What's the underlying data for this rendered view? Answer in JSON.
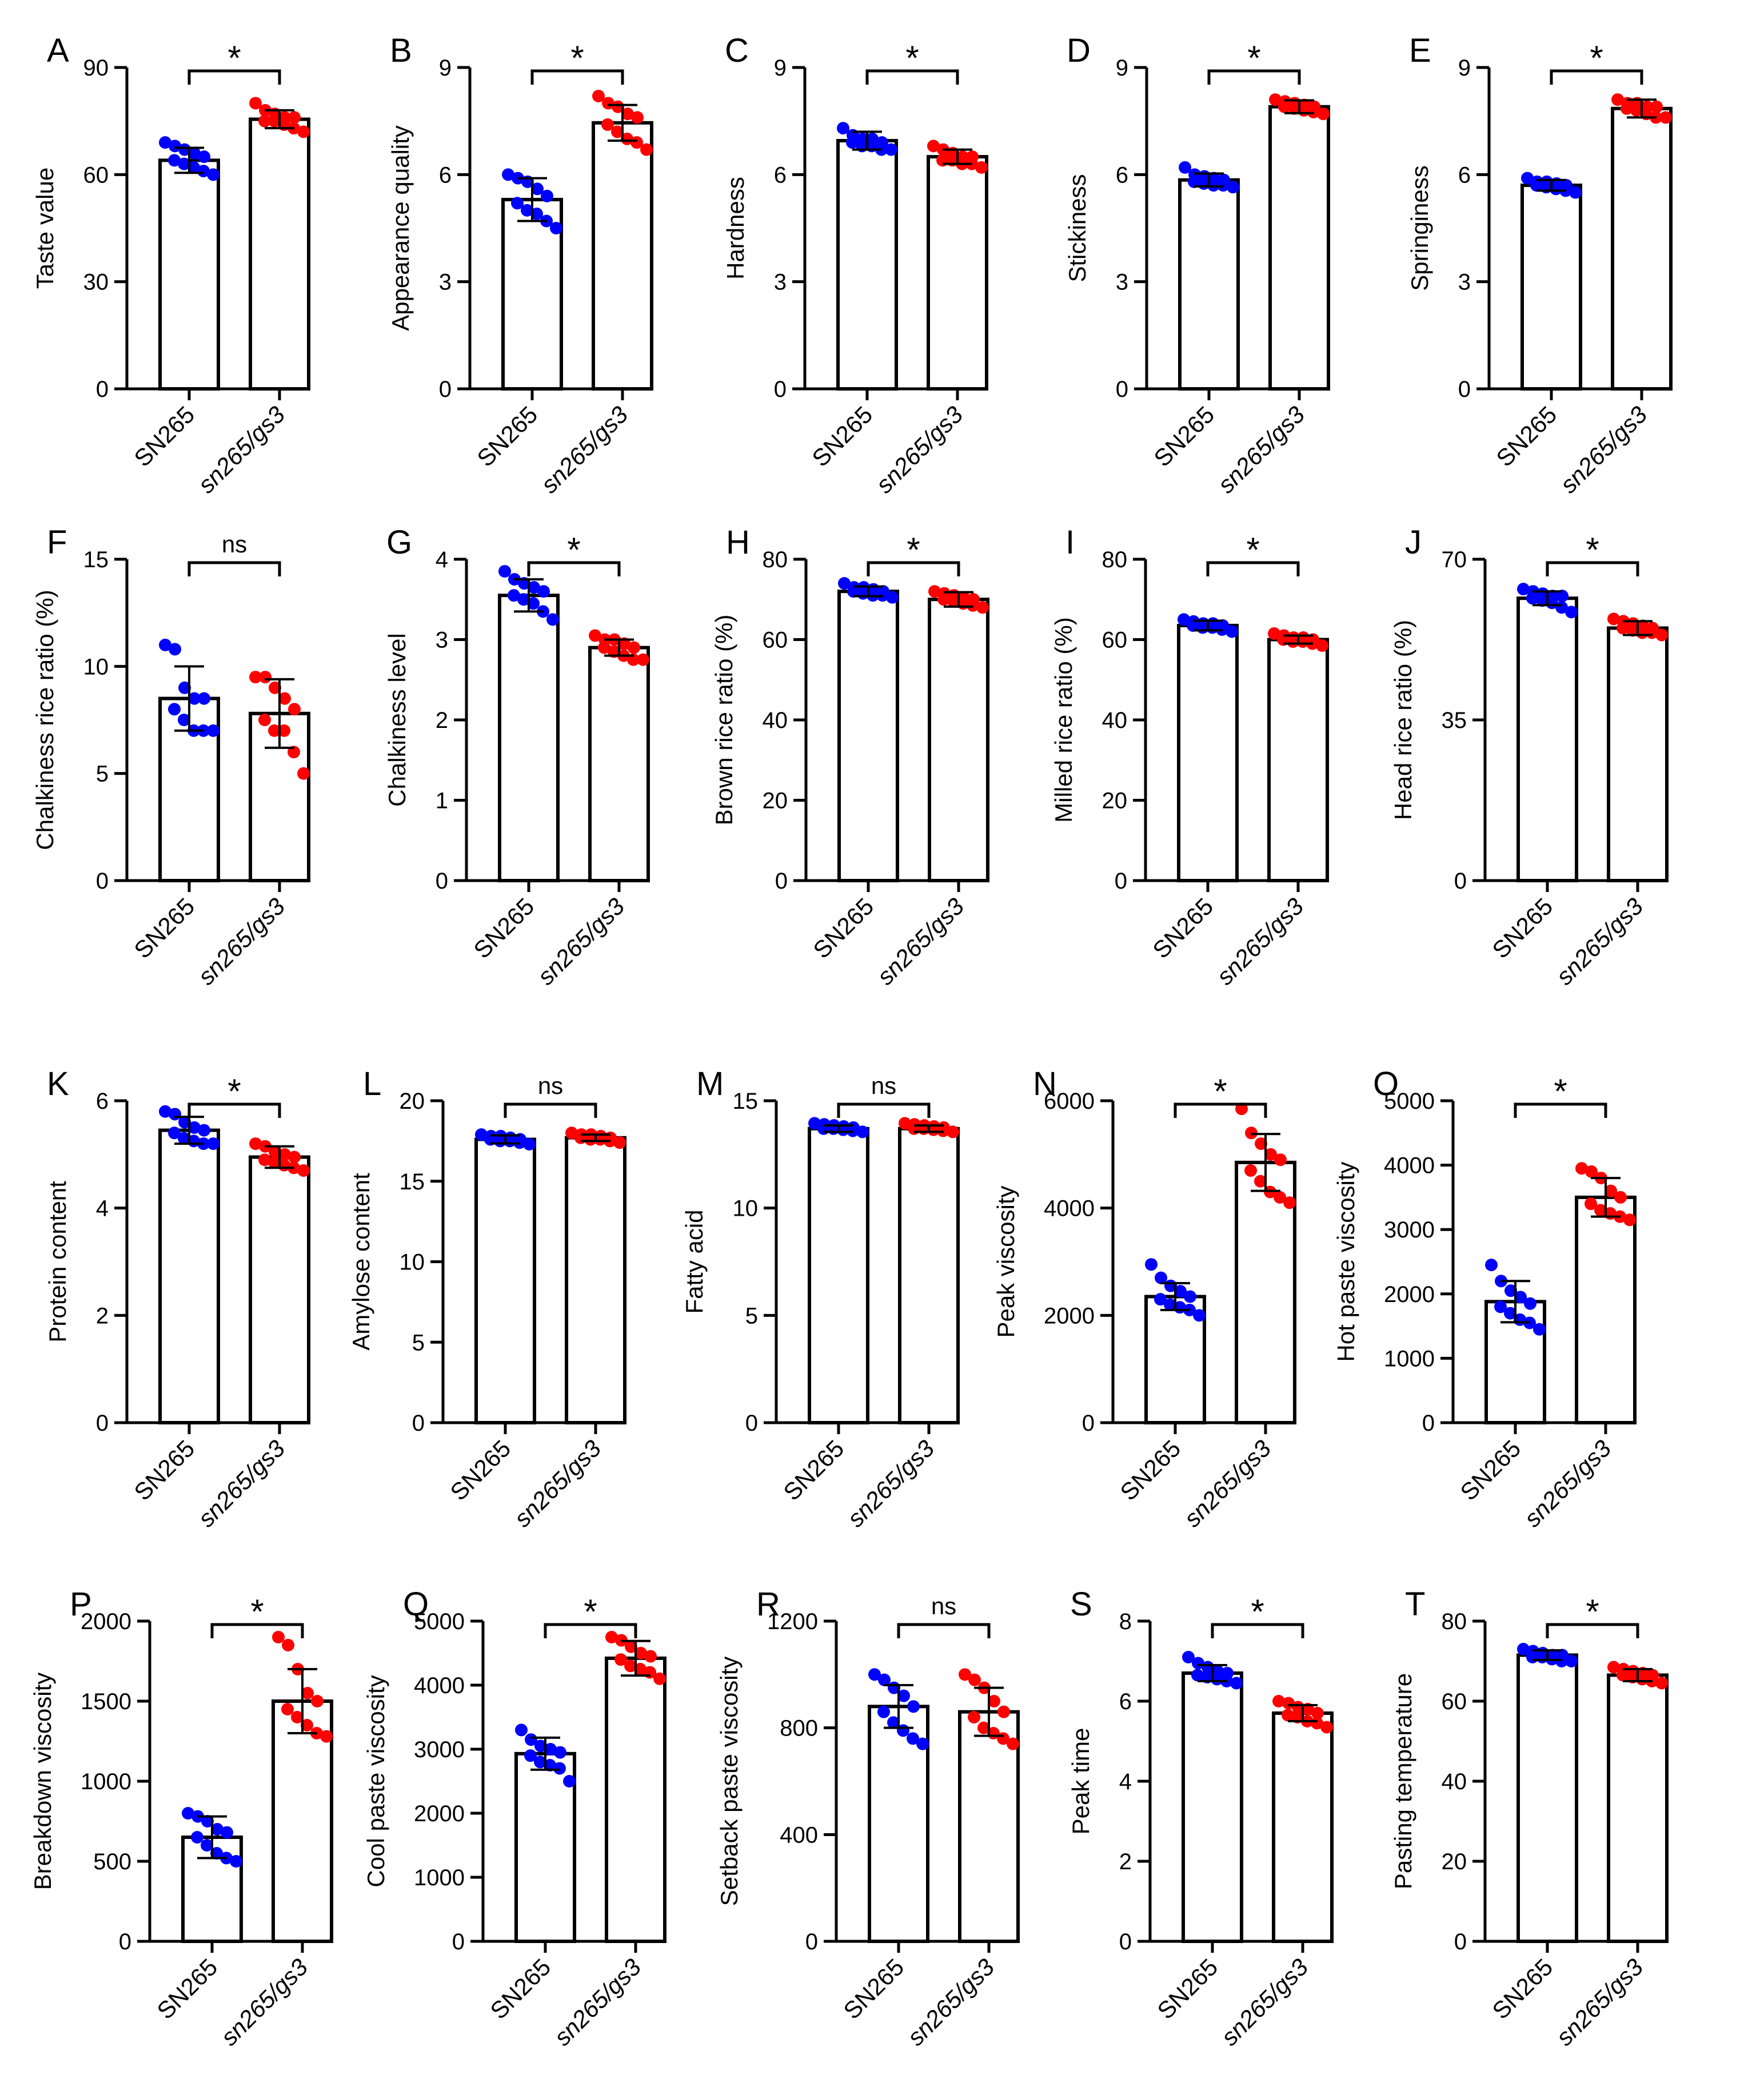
{
  "colors": {
    "wild_type": "#0000ff",
    "mutant": "#ff0000",
    "ink": "#000000"
  },
  "chart_data": [
    {
      "panel": "A",
      "type": "bar",
      "ylabel": "Taste value",
      "ylim": [
        0,
        90
      ],
      "yticks": [
        "0",
        "30",
        "60",
        "90"
      ],
      "categories": [
        "SN265",
        "sn265/gs3"
      ],
      "values": [
        64,
        75.5
      ],
      "sd": [
        3.5,
        2.5
      ],
      "significance": "*",
      "points": [
        [
          69,
          68,
          67,
          66,
          65,
          64,
          63,
          62,
          61,
          60
        ],
        [
          80,
          78,
          77,
          76,
          76,
          75,
          75,
          74,
          73,
          72
        ]
      ]
    },
    {
      "panel": "B",
      "type": "bar",
      "ylabel": "Appearance quality",
      "ylim": [
        0,
        9
      ],
      "yticks": [
        "0",
        "3",
        "6",
        "9"
      ],
      "categories": [
        "SN265",
        "sn265/gs3"
      ],
      "values": [
        5.3,
        7.45
      ],
      "sd": [
        0.6,
        0.5
      ],
      "significance": "*",
      "points": [
        [
          6.0,
          5.9,
          5.8,
          5.6,
          5.4,
          5.2,
          5.0,
          4.9,
          4.7,
          4.5
        ],
        [
          8.2,
          8.0,
          7.9,
          7.7,
          7.6,
          7.4,
          7.2,
          7.0,
          6.9,
          6.7
        ]
      ]
    },
    {
      "panel": "C",
      "type": "bar",
      "ylabel": "Hardness",
      "ylim": [
        0,
        9
      ],
      "yticks": [
        "0",
        "3",
        "6",
        "9"
      ],
      "categories": [
        "SN265",
        "sn265/gs3"
      ],
      "values": [
        6.95,
        6.5
      ],
      "sd": [
        0.25,
        0.2
      ],
      "significance": "*",
      "points": [
        [
          7.3,
          7.1,
          7.0,
          7.0,
          6.9,
          6.9,
          6.8,
          6.8,
          6.7,
          6.7
        ],
        [
          6.8,
          6.7,
          6.6,
          6.5,
          6.5,
          6.4,
          6.4,
          6.3,
          6.3,
          6.2
        ]
      ]
    },
    {
      "panel": "D",
      "type": "bar",
      "ylabel": "Stickiness",
      "ylim": [
        0,
        9
      ],
      "yticks": [
        "0",
        "3",
        "6",
        "9"
      ],
      "categories": [
        "SN265",
        "sn265/gs3"
      ],
      "values": [
        5.85,
        7.9
      ],
      "sd": [
        0.18,
        0.18
      ],
      "significance": "*",
      "points": [
        [
          6.2,
          6.0,
          5.95,
          5.9,
          5.85,
          5.8,
          5.75,
          5.7,
          5.7,
          5.65
        ],
        [
          8.1,
          8.05,
          8.0,
          7.95,
          7.9,
          7.9,
          7.85,
          7.8,
          7.75,
          7.7
        ]
      ]
    },
    {
      "panel": "E",
      "type": "bar",
      "ylabel": "Springiness",
      "ylim": [
        0,
        9
      ],
      "yticks": [
        "0",
        "3",
        "6",
        "9"
      ],
      "categories": [
        "SN265",
        "sn265/gs3"
      ],
      "values": [
        5.7,
        7.85
      ],
      "sd": [
        0.15,
        0.25
      ],
      "significance": "*",
      "points": [
        [
          5.9,
          5.8,
          5.8,
          5.75,
          5.7,
          5.7,
          5.65,
          5.6,
          5.55,
          5.5
        ],
        [
          8.1,
          8.0,
          8.0,
          7.9,
          7.9,
          7.85,
          7.8,
          7.7,
          7.6,
          7.6
        ]
      ]
    },
    {
      "panel": "F",
      "type": "bar",
      "ylabel": "Chalkiness rice ratio (%)",
      "ylim": [
        0,
        15
      ],
      "yticks": [
        "0",
        "5",
        "10",
        "15"
      ],
      "categories": [
        "SN265",
        "sn265/gs3"
      ],
      "values": [
        8.5,
        7.8
      ],
      "sd": [
        1.5,
        1.6
      ],
      "significance": "ns",
      "points": [
        [
          11.0,
          10.8,
          9.0,
          8.5,
          8.5,
          8.0,
          7.5,
          7.0,
          7.0,
          7.0
        ],
        [
          9.5,
          9.5,
          9.0,
          8.5,
          8.0,
          7.5,
          7.0,
          7.0,
          6.0,
          5.0
        ]
      ]
    },
    {
      "panel": "G",
      "type": "bar",
      "ylabel": "Chalkiness level",
      "ylim": [
        0,
        4
      ],
      "yticks": [
        "0",
        "1",
        "2",
        "3",
        "4"
      ],
      "categories": [
        "SN265",
        "sn265/gs3"
      ],
      "values": [
        3.55,
        2.9
      ],
      "sd": [
        0.2,
        0.1
      ],
      "significance": "*",
      "points": [
        [
          3.85,
          3.75,
          3.7,
          3.65,
          3.6,
          3.55,
          3.5,
          3.45,
          3.35,
          3.25
        ],
        [
          3.05,
          3.0,
          3.0,
          2.95,
          2.9,
          2.9,
          2.85,
          2.8,
          2.75,
          2.75
        ]
      ]
    },
    {
      "panel": "H",
      "type": "bar",
      "ylabel": "Brown rice ratio (%)",
      "ylim": [
        0,
        80
      ],
      "yticks": [
        "0",
        "20",
        "40",
        "60",
        "80"
      ],
      "categories": [
        "SN265",
        "sn265/gs3"
      ],
      "values": [
        72,
        70
      ],
      "sd": [
        1.2,
        1.8
      ],
      "significance": "*",
      "points": [
        [
          74,
          73,
          73,
          72.5,
          72,
          72,
          71.5,
          71,
          71,
          70.5
        ],
        [
          72,
          71.5,
          71,
          70.5,
          70,
          70,
          69.5,
          69,
          68.5,
          68
        ]
      ]
    },
    {
      "panel": "I",
      "type": "bar",
      "ylabel": "Milled rice ratio (%)",
      "ylim": [
        0,
        80
      ],
      "yticks": [
        "0",
        "20",
        "40",
        "60",
        "80"
      ],
      "categories": [
        "SN265",
        "sn265/gs3"
      ],
      "values": [
        63.5,
        60
      ],
      "sd": [
        1.2,
        1.0
      ],
      "significance": "*",
      "points": [
        [
          65,
          64.5,
          64,
          64,
          63.5,
          63.5,
          63,
          63,
          62.5,
          62
        ],
        [
          61.5,
          61,
          60.5,
          60.5,
          60,
          60,
          59.5,
          59.5,
          59,
          58.5
        ]
      ]
    },
    {
      "panel": "J",
      "type": "bar",
      "ylabel": "Head rice ratio (%)",
      "ylim": [
        0,
        70
      ],
      "yticks": [
        "0",
        "35",
        "70"
      ],
      "categories": [
        "SN265",
        "sn265/gs3"
      ],
      "values": [
        61.5,
        55
      ],
      "sd": [
        1.5,
        1.5
      ],
      "significance": "*",
      "points": [
        [
          63.5,
          63,
          62.5,
          62,
          62,
          61.5,
          61,
          60.5,
          59.5,
          58.5
        ],
        [
          57,
          56.5,
          56,
          55.5,
          55,
          55,
          54.5,
          54,
          54,
          53.5
        ]
      ]
    },
    {
      "panel": "K",
      "type": "bar",
      "ylabel": "Protein content",
      "ylim": [
        0,
        6
      ],
      "yticks": [
        "0",
        "2",
        "4",
        "6"
      ],
      "categories": [
        "SN265",
        "sn265/gs3"
      ],
      "values": [
        5.45,
        4.95
      ],
      "sd": [
        0.25,
        0.2
      ],
      "significance": "*",
      "points": [
        [
          5.8,
          5.75,
          5.6,
          5.5,
          5.45,
          5.4,
          5.3,
          5.25,
          5.2,
          5.2
        ],
        [
          5.2,
          5.15,
          5.05,
          5.0,
          4.95,
          4.9,
          4.85,
          4.8,
          4.75,
          4.7
        ]
      ]
    },
    {
      "panel": "L",
      "type": "bar",
      "ylabel": "Amylose content",
      "ylim": [
        0,
        20
      ],
      "yticks": [
        "0",
        "5",
        "10",
        "15",
        "20"
      ],
      "categories": [
        "SN265",
        "sn265/gs3"
      ],
      "values": [
        17.6,
        17.7
      ],
      "sd": [
        0.25,
        0.2
      ],
      "significance": "ns",
      "points": [
        [
          17.9,
          17.8,
          17.8,
          17.7,
          17.6,
          17.6,
          17.5,
          17.5,
          17.4,
          17.3
        ],
        [
          18.0,
          17.9,
          17.9,
          17.8,
          17.7,
          17.7,
          17.6,
          17.6,
          17.5,
          17.4
        ]
      ]
    },
    {
      "panel": "M",
      "type": "bar",
      "ylabel": "Fatty acid",
      "ylim": [
        0,
        15
      ],
      "yticks": [
        "0",
        "5",
        "10",
        "15"
      ],
      "categories": [
        "SN265",
        "sn265/gs3"
      ],
      "values": [
        13.7,
        13.7
      ],
      "sd": [
        0.15,
        0.15
      ],
      "significance": "ns",
      "points": [
        [
          13.95,
          13.9,
          13.85,
          13.8,
          13.75,
          13.7,
          13.7,
          13.65,
          13.6,
          13.55
        ],
        [
          13.95,
          13.9,
          13.85,
          13.8,
          13.75,
          13.7,
          13.7,
          13.65,
          13.6,
          13.55
        ]
      ]
    },
    {
      "panel": "N",
      "type": "bar",
      "ylabel": "Peak viscosity",
      "ylim": [
        0,
        6000
      ],
      "yticks": [
        "0",
        "2000",
        "4000",
        "6000"
      ],
      "categories": [
        "SN265",
        "sn265/gs3"
      ],
      "values": [
        2350,
        4850
      ],
      "sd": [
        250,
        530
      ],
      "significance": "*",
      "points": [
        [
          2950,
          2700,
          2550,
          2450,
          2350,
          2300,
          2200,
          2150,
          2100,
          2000
        ],
        [
          5850,
          5400,
          5200,
          5000,
          4900,
          4700,
          4500,
          4300,
          4200,
          4100
        ]
      ]
    },
    {
      "panel": "O",
      "type": "bar",
      "ylabel": "Hot paste viscosity",
      "ylim": [
        0,
        5000
      ],
      "yticks": [
        "0",
        "1000",
        "2000",
        "3000",
        "4000",
        "5000"
      ],
      "categories": [
        "SN265",
        "sn265/gs3"
      ],
      "values": [
        1880,
        3500
      ],
      "sd": [
        320,
        300
      ],
      "significance": "*",
      "points": [
        [
          2450,
          2200,
          2050,
          1950,
          1850,
          1800,
          1700,
          1600,
          1550,
          1450
        ],
        [
          3950,
          3900,
          3800,
          3600,
          3500,
          3400,
          3300,
          3250,
          3200,
          3150
        ]
      ]
    },
    {
      "panel": "P",
      "type": "bar",
      "ylabel": "Breakdown viscosity",
      "ylim": [
        0,
        2000
      ],
      "yticks": [
        "0",
        "500",
        "1000",
        "1500",
        "2000"
      ],
      "categories": [
        "SN265",
        "sn265/gs3"
      ],
      "values": [
        650,
        1500
      ],
      "sd": [
        130,
        200
      ],
      "significance": "*",
      "points": [
        [
          800,
          780,
          750,
          700,
          680,
          650,
          600,
          550,
          520,
          500
        ],
        [
          1900,
          1850,
          1700,
          1550,
          1500,
          1450,
          1400,
          1350,
          1300,
          1280
        ]
      ]
    },
    {
      "panel": "Q",
      "type": "bar",
      "ylabel": "Cool paste viscosity",
      "ylim": [
        0,
        5000
      ],
      "yticks": [
        "0",
        "1000",
        "2000",
        "3000",
        "4000",
        "5000"
      ],
      "categories": [
        "SN265",
        "sn265/gs3"
      ],
      "values": [
        2930,
        4420
      ],
      "sd": [
        250,
        270
      ],
      "significance": "*",
      "points": [
        [
          3300,
          3150,
          3050,
          3000,
          2950,
          2900,
          2800,
          2750,
          2700,
          2500
        ],
        [
          4750,
          4700,
          4600,
          4500,
          4450,
          4400,
          4300,
          4250,
          4200,
          4100
        ]
      ]
    },
    {
      "panel": "R",
      "type": "bar",
      "ylabel": "Setback paste viscosity",
      "ylim": [
        0,
        1200
      ],
      "yticks": [
        "0",
        "400",
        "800",
        "1200"
      ],
      "categories": [
        "SN265",
        "sn265/gs3"
      ],
      "values": [
        880,
        860
      ],
      "sd": [
        80,
        90
      ],
      "significance": "ns",
      "points": [
        [
          1000,
          980,
          950,
          920,
          880,
          860,
          820,
          790,
          760,
          740
        ],
        [
          1000,
          980,
          950,
          900,
          860,
          840,
          800,
          780,
          760,
          740
        ]
      ]
    },
    {
      "panel": "S",
      "type": "bar",
      "ylabel": "Peak time",
      "ylim": [
        0,
        8
      ],
      "yticks": [
        "0",
        "2",
        "4",
        "6",
        "8"
      ],
      "categories": [
        "SN265",
        "sn265/gs3"
      ],
      "values": [
        6.7,
        5.7
      ],
      "sd": [
        0.2,
        0.2
      ],
      "significance": "*",
      "points": [
        [
          7.1,
          6.95,
          6.85,
          6.75,
          6.7,
          6.65,
          6.6,
          6.55,
          6.5,
          6.45
        ],
        [
          6.0,
          5.95,
          5.85,
          5.8,
          5.7,
          5.65,
          5.6,
          5.5,
          5.45,
          5.35
        ]
      ]
    },
    {
      "panel": "T",
      "type": "bar",
      "ylabel": "Pasting temperature",
      "ylim": [
        0,
        80
      ],
      "yticks": [
        "0",
        "20",
        "40",
        "60",
        "80"
      ],
      "categories": [
        "SN265",
        "sn265/gs3"
      ],
      "values": [
        71.5,
        66.5
      ],
      "sd": [
        1.2,
        1.5
      ],
      "significance": "*",
      "points": [
        [
          73,
          72.5,
          72,
          71.5,
          71.5,
          71,
          71,
          70.5,
          70,
          70
        ],
        [
          68.5,
          68,
          67.5,
          67,
          66.5,
          66.5,
          66,
          65.5,
          65,
          64.5
        ]
      ]
    }
  ]
}
